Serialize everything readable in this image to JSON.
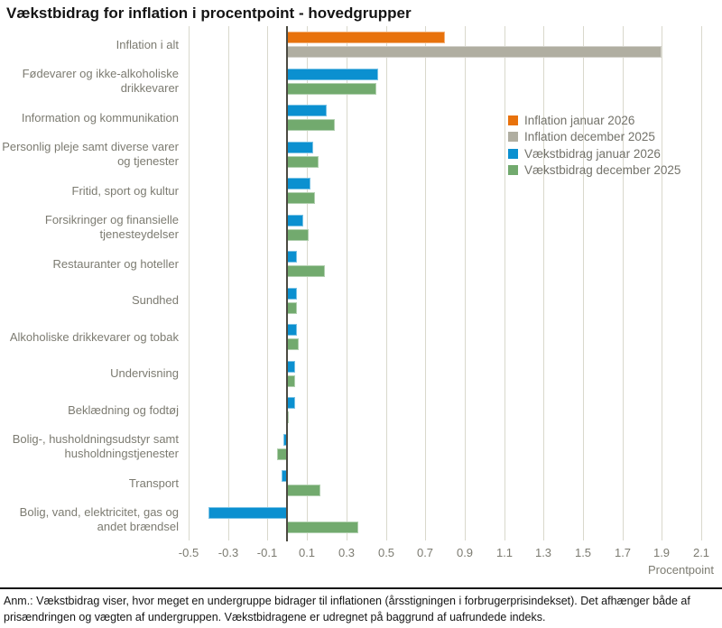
{
  "title": "Vækstbidrag for inflation i procentpoint - hovedgrupper",
  "footnote": "Anm.: Vækstbidrag viser, hvor meget en undergruppe bidrager til inflationen (årsstigningen i forbrugerprisindekset). Det afhænger både af prisændringen og vægten af undergruppen. Vækstbidragene er udregnet på baggrund af uafrundede indeks.",
  "colors": {
    "orange": "#e8720c",
    "gray": "#b0aea1",
    "blue": "#0b90d0",
    "green": "#72aa6e",
    "gridline": "#d9d8cc",
    "zero_axis": "#4b4a41",
    "axis_text": "#7c7b71",
    "title_text": "#141414"
  },
  "chart_data": {
    "type": "bar",
    "orientation": "horizontal",
    "title": "Vækstbidrag for inflation i procentpoint - hovedgrupper",
    "xlabel": "Procentpoint",
    "ylabel": "",
    "xlim": [
      -0.5,
      2.1
    ],
    "x_ticks": [
      -0.5,
      -0.3,
      -0.1,
      0.1,
      0.3,
      0.5,
      0.7,
      0.9,
      1.1,
      1.3,
      1.5,
      1.7,
      1.9,
      2.1
    ],
    "grid": true,
    "legend_position": "middle-right",
    "categories": [
      "Inflation i alt",
      "Fødevarer og ikke-alkoholiske drikkevarer",
      "Information og kommunikation",
      "Personlig pleje samt diverse varer og tjenester",
      "Fritid, sport og kultur",
      "Forsikringer og finansielle tjenesteydelser",
      "Restauranter og hoteller",
      "Sundhed",
      "Alkoholiske drikkevarer og tobak",
      "Undervisning",
      "Beklædning og fodtøj",
      "Bolig-, husholdningsudstyr samt husholdningstjenester",
      "Transport",
      "Bolig, vand, elektricitet, gas og andet brændsel"
    ],
    "series": [
      {
        "name": "Inflation januar 2026",
        "color": "#e8720c",
        "values": [
          0.8,
          null,
          null,
          null,
          null,
          null,
          null,
          null,
          null,
          null,
          null,
          null,
          null,
          null
        ]
      },
      {
        "name": "Inflation december 2025",
        "color": "#b0aea1",
        "values": [
          1.9,
          null,
          null,
          null,
          null,
          null,
          null,
          null,
          null,
          null,
          null,
          null,
          null,
          null
        ]
      },
      {
        "name": "Vækstbidrag januar 2026",
        "color": "#0b90d0",
        "values": [
          null,
          0.46,
          0.2,
          0.13,
          0.12,
          0.08,
          0.05,
          0.05,
          0.05,
          0.04,
          0.04,
          -0.02,
          -0.03,
          -0.4
        ]
      },
      {
        "name": "Vækstbidrag december 2025",
        "color": "#72aa6e",
        "values": [
          null,
          0.45,
          0.24,
          0.16,
          0.14,
          0.11,
          0.19,
          0.05,
          0.06,
          0.04,
          0.0,
          -0.05,
          0.17,
          0.36
        ]
      }
    ]
  }
}
